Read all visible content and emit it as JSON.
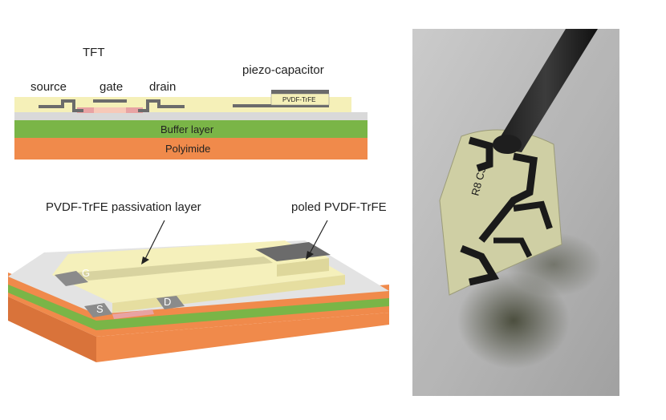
{
  "cross_section": {
    "tft": "TFT",
    "source": "source",
    "gate": "gate",
    "drain": "drain",
    "piezo_capacitor": "piezo-capacitor",
    "pvdf_film": "PVDF-TrFE",
    "buffer_layer": "Buffer layer",
    "polyimide": "Polyimide"
  },
  "isometric": {
    "passivation_label": "PVDF-TrFE passivation layer",
    "poled_label": "poled PVDF-TrFE",
    "gate_mark": "G",
    "source_mark": "S",
    "drain_mark": "D"
  },
  "photo": {
    "chip_text": "R8 C3"
  },
  "colors": {
    "polyimide": "#f08a4b",
    "buffer": "#7ab547",
    "substrate_top": "#d9d9d9",
    "passivation": "#f5f0b8",
    "metal": "#6b6b6b",
    "contact": "#e08a8a"
  }
}
